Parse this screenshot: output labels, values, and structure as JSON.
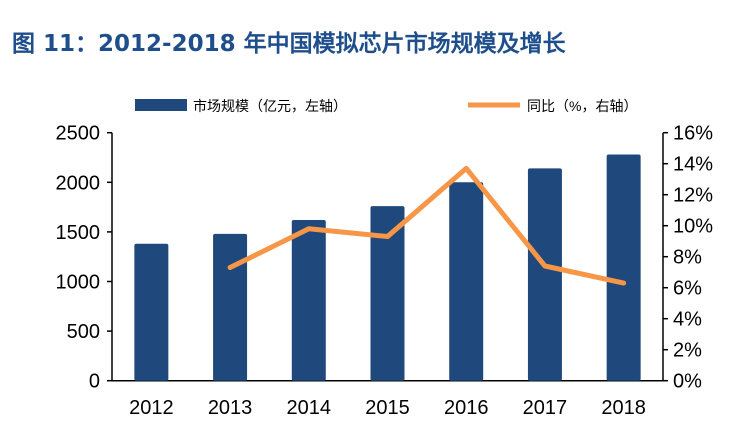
{
  "chart_data": {
    "type": "bar+line",
    "title": "图 11：2012-2018 年中国模拟芯片市场规模及增长",
    "categories": [
      "2012",
      "2013",
      "2014",
      "2015",
      "2016",
      "2017",
      "2018"
    ],
    "series": [
      {
        "name": "市场规模（亿元，左轴）",
        "type": "bar",
        "axis": "left",
        "color": "#1f497d",
        "values": [
          1380,
          1480,
          1620,
          1760,
          2000,
          2140,
          2280
        ]
      },
      {
        "name": "同比（%，右轴）",
        "type": "line",
        "axis": "right",
        "color": "#f79646",
        "values": [
          null,
          7.3,
          9.8,
          9.3,
          13.7,
          7.4,
          6.3
        ]
      }
    ],
    "y_left": {
      "range": [
        0,
        2500
      ],
      "ticks": [
        "0",
        "500",
        "1000",
        "1500",
        "2000",
        "2500"
      ]
    },
    "y_right": {
      "range": [
        0,
        16
      ],
      "ticks": [
        "0%",
        "2%",
        "4%",
        "6%",
        "8%",
        "10%",
        "12%",
        "14%",
        "16%"
      ]
    },
    "legend_position": "top",
    "grid": false
  }
}
